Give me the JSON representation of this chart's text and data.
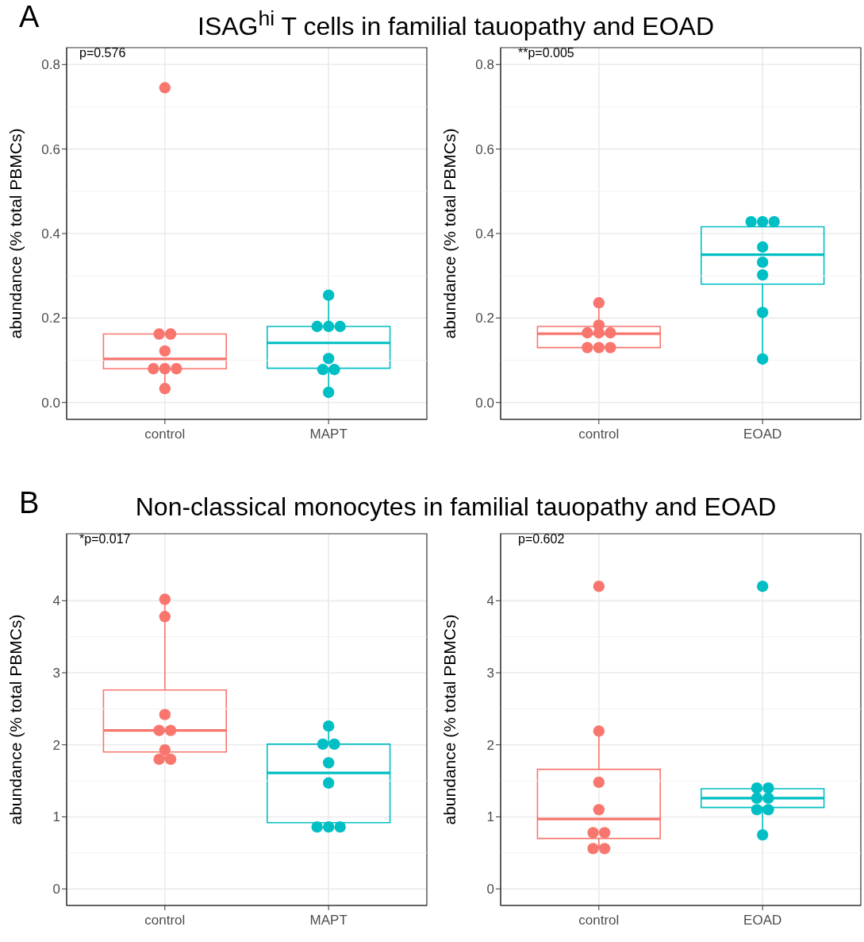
{
  "chart_data": [
    {
      "type": "box",
      "title": "ISAG$^{hi}$ T cells in familial tauopathy and EOAD",
      "annotations": [
        "A",
        "p=0.576"
      ],
      "categories": [
        "control",
        "MAPT"
      ],
      "ylabel": "abundance (% total PBMCs)",
      "ylim": [
        -0.04,
        0.84
      ],
      "yticks": [
        {
          "value": 0,
          "label": "0.0"
        },
        0.2,
        0.4,
        0.6,
        0.8
      ],
      "grid": true,
      "series": [
        {
          "colors": [
            "#f8766d",
            "#00bfc4"
          ],
          "boxes": [
            {
              "low": 0.033,
              "q1": 0.08,
              "median": 0.103,
              "q3": 0.162,
              "high": 0.162
            },
            {
              "low": 0.024,
              "q1": 0.081,
              "median": 0.141,
              "q3": 0.18,
              "high": 0.254
            }
          ]
        },
        {
          "type": "scatter",
          "color": "#f8766d",
          "x": [
            "control",
            "control",
            "control",
            "control",
            "control",
            "control",
            "control",
            "control"
          ],
          "values": [
            0.745,
            0.162,
            0.162,
            0.122,
            0.08,
            0.08,
            0.08,
            0.033
          ]
        },
        {
          "type": "scatter",
          "color": "#00bfc4",
          "x": [
            "MAPT",
            "MAPT",
            "MAPT",
            "MAPT",
            "MAPT",
            "MAPT",
            "MAPT",
            "MAPT"
          ],
          "values": [
            0.254,
            0.18,
            0.18,
            0.18,
            0.104,
            0.078,
            0.078,
            0.024
          ]
        }
      ]
    },
    {
      "type": "box",
      "annotations": [
        "**p=0.005"
      ],
      "categories": [
        "control",
        "EOAD"
      ],
      "ylabel": "abundance (% total PBMCs)",
      "ylim": [
        -0.04,
        0.84
      ],
      "yticks": [
        {
          "value": 0,
          "label": "0.0"
        },
        0.2,
        0.4,
        0.6,
        0.8
      ],
      "grid": true,
      "series": [
        {
          "colors": [
            "#f8766d",
            "#00bfc4"
          ],
          "boxes": [
            {
              "low": 0.13,
              "q1": 0.13,
              "median": 0.163,
              "q3": 0.18,
              "high": 0.236
            },
            {
              "low": 0.103,
              "q1": 0.28,
              "median": 0.35,
              "q3": 0.416,
              "high": 0.428
            }
          ]
        },
        {
          "type": "scatter",
          "color": "#f8766d",
          "x": [
            "control",
            "control",
            "control",
            "control",
            "control",
            "control",
            "control",
            "control"
          ],
          "values": [
            0.236,
            0.183,
            0.165,
            0.165,
            0.165,
            0.13,
            0.13,
            0.13
          ]
        },
        {
          "type": "scatter",
          "color": "#00bfc4",
          "x": [
            "EOAD",
            "EOAD",
            "EOAD",
            "EOAD",
            "EOAD",
            "EOAD",
            "EOAD",
            "EOAD"
          ],
          "values": [
            0.428,
            0.428,
            0.428,
            0.368,
            0.332,
            0.302,
            0.213,
            0.103
          ]
        }
      ]
    },
    {
      "type": "box",
      "title": "Non-classical monocytes in familial tauopathy and EOAD",
      "annotations": [
        "B",
        "*p=0.017"
      ],
      "categories": [
        "control",
        "MAPT"
      ],
      "ylabel": "abundance (% total PBMCs)",
      "ylim": [
        -0.23,
        4.93
      ],
      "yticks": [
        0,
        1,
        2,
        3,
        4
      ],
      "grid": true,
      "series": [
        {
          "colors": [
            "#f8766d",
            "#00bfc4"
          ],
          "boxes": [
            {
              "low": 1.8,
              "q1": 1.9,
              "median": 2.2,
              "q3": 2.76,
              "high": 4.02
            },
            {
              "low": 0.86,
              "q1": 0.92,
              "median": 1.61,
              "q3": 2.01,
              "high": 2.26
            }
          ]
        },
        {
          "type": "scatter",
          "color": "#f8766d",
          "x": [
            "control",
            "control",
            "control",
            "control",
            "control",
            "control",
            "control",
            "control"
          ],
          "values": [
            4.02,
            3.78,
            2.42,
            2.2,
            2.2,
            1.93,
            1.8,
            1.8
          ]
        },
        {
          "type": "scatter",
          "color": "#00bfc4",
          "x": [
            "MAPT",
            "MAPT",
            "MAPT",
            "MAPT",
            "MAPT",
            "MAPT",
            "MAPT",
            "MAPT"
          ],
          "values": [
            2.26,
            2.01,
            2.01,
            1.75,
            1.47,
            0.86,
            0.86,
            0.86
          ]
        }
      ]
    },
    {
      "type": "box",
      "annotations": [
        "p=0.602"
      ],
      "categories": [
        "control",
        "EOAD"
      ],
      "ylabel": "abundance (% total PBMCs)",
      "ylim": [
        -0.23,
        4.93
      ],
      "yticks": [
        0,
        1,
        2,
        3,
        4
      ],
      "grid": true,
      "series": [
        {
          "colors": [
            "#f8766d",
            "#00bfc4"
          ],
          "boxes": [
            {
              "low": 0.56,
              "q1": 0.7,
              "median": 0.97,
              "q3": 1.66,
              "high": 2.19
            },
            {
              "low": 0.75,
              "q1": 1.13,
              "median": 1.26,
              "q3": 1.39,
              "high": 1.4
            }
          ]
        },
        {
          "type": "scatter",
          "color": "#f8766d",
          "x": [
            "control",
            "control",
            "control",
            "control",
            "control",
            "control",
            "control",
            "control"
          ],
          "values": [
            4.2,
            2.19,
            1.48,
            1.1,
            0.78,
            0.78,
            0.56,
            0.56
          ]
        },
        {
          "type": "scatter",
          "color": "#00bfc4",
          "x": [
            "EOAD",
            "EOAD",
            "EOAD",
            "EOAD",
            "EOAD",
            "EOAD",
            "EOAD",
            "EOAD"
          ],
          "values": [
            4.2,
            1.4,
            1.4,
            1.26,
            1.26,
            1.1,
            1.1,
            0.75
          ]
        }
      ]
    }
  ]
}
